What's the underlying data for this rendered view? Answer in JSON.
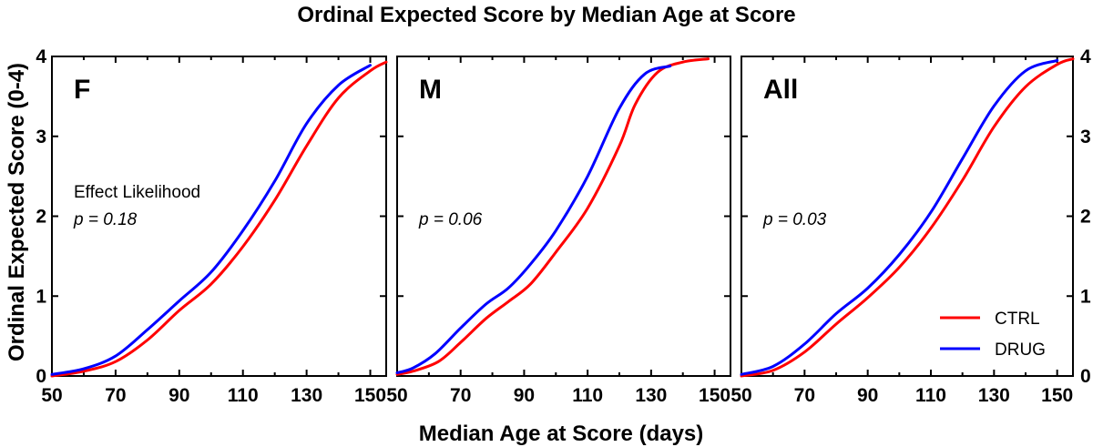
{
  "chart_data": {
    "type": "line",
    "title": "Ordinal Expected Score by Median Age at Score",
    "xlabel": "Median Age at Score (days)",
    "ylabel": "Ordinal Expected Score (0-4)",
    "xlim": [
      50,
      155
    ],
    "ylim": [
      0,
      4
    ],
    "x_ticks": [
      50,
      70,
      90,
      110,
      130,
      150
    ],
    "y_ticks": [
      0,
      1,
      2,
      3,
      4
    ],
    "grid": false,
    "legend": {
      "placement": "bottom-right of third panel",
      "entries": [
        {
          "name": "CTRL",
          "color": "#ff0000"
        },
        {
          "name": "DRUG",
          "color": "#0000ff"
        }
      ]
    },
    "panels": [
      {
        "label": "F",
        "annotation_heading": "Effect Likelihood",
        "p_value_text": "p = 0.18",
        "series": [
          {
            "name": "CTRL",
            "color": "#ff0000",
            "x": [
              50,
              60,
              70,
              80,
              90,
              100,
              110,
              120,
              130,
              140,
              150,
              155
            ],
            "y": [
              0.0,
              0.06,
              0.18,
              0.45,
              0.82,
              1.15,
              1.62,
              2.2,
              2.88,
              3.48,
              3.82,
              3.93
            ]
          },
          {
            "name": "DRUG",
            "color": "#0000ff",
            "x": [
              50,
              60,
              70,
              80,
              90,
              100,
              110,
              120,
              130,
              140,
              150
            ],
            "y": [
              0.02,
              0.09,
              0.25,
              0.58,
              0.94,
              1.3,
              1.82,
              2.44,
              3.16,
              3.64,
              3.89
            ]
          }
        ]
      },
      {
        "label": "M",
        "annotation_heading": "",
        "p_value_text": "p = 0.06",
        "series": [
          {
            "name": "CTRL",
            "color": "#ff0000",
            "x": [
              50,
              55,
              63,
              70,
              78,
              85,
              92,
              100,
              110,
              120,
              125,
              132,
              140,
              148
            ],
            "y": [
              0.02,
              0.06,
              0.18,
              0.42,
              0.72,
              0.93,
              1.15,
              1.55,
              2.1,
              2.88,
              3.4,
              3.8,
              3.93,
              3.97
            ]
          },
          {
            "name": "DRUG",
            "color": "#0000ff",
            "x": [
              50,
              55,
              62,
              70,
              78,
              85,
              92,
              100,
              110,
              120,
              128,
              136
            ],
            "y": [
              0.04,
              0.1,
              0.28,
              0.6,
              0.9,
              1.1,
              1.4,
              1.82,
              2.5,
              3.35,
              3.78,
              3.88
            ]
          }
        ]
      },
      {
        "label": "All",
        "annotation_heading": "",
        "p_value_text": "p = 0.03",
        "series": [
          {
            "name": "CTRL",
            "color": "#ff0000",
            "x": [
              50,
              60,
              70,
              80,
              90,
              100,
              110,
              120,
              130,
              140,
              150,
              155
            ],
            "y": [
              0.0,
              0.07,
              0.3,
              0.65,
              0.98,
              1.36,
              1.85,
              2.45,
              3.12,
              3.62,
              3.9,
              3.97
            ]
          },
          {
            "name": "DRUG",
            "color": "#0000ff",
            "x": [
              50,
              60,
              70,
              80,
              90,
              100,
              110,
              120,
              130,
              140,
              150
            ],
            "y": [
              0.02,
              0.12,
              0.4,
              0.78,
              1.1,
              1.52,
              2.05,
              2.72,
              3.38,
              3.82,
              3.95
            ]
          }
        ]
      }
    ]
  }
}
